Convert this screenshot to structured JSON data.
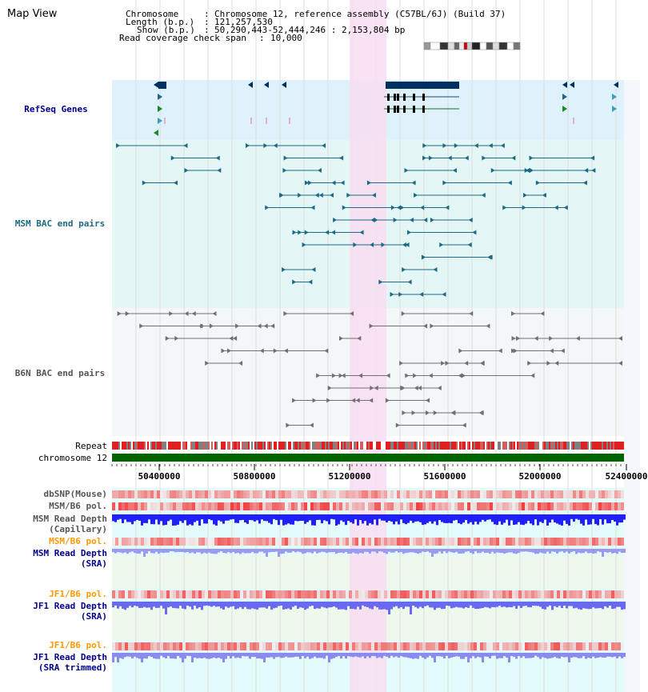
{
  "title": "Map View",
  "header": {
    "chromosome_label": "Chromosome",
    "chromosome_value": "Chromosome 12, reference assembly (C57BL/6J) (Build 37)",
    "length_label": "Length (b.p.)",
    "length_value": "121,257,530",
    "show_label": "Show (b.p.)",
    "show_value": "50,290,443-52,444,246 : 2,153,804 bp",
    "coverage_label": "Read coverage check span",
    "coverage_value": "10,000"
  },
  "tracks": {
    "refseq": "RefSeq Genes",
    "msm_bac": "MSM BAC end pairs",
    "b6n_bac": "B6N BAC end pairs",
    "repeat": "Repeat",
    "chromosome": "chromosome 12",
    "dbsnp": "dbSNP(Mouse)",
    "msm_b6_pol_1": "MSM/B6 pol.",
    "msm_read_cap_1": "MSM Read Depth",
    "msm_read_cap_2": "(Capillary)",
    "msm_b6_pol_2": "MSM/B6 pol.",
    "msm_read_sra_1": "MSM Read Depth",
    "msm_read_sra_2": "(SRA)",
    "jf1_b6_pol_1": "JF1/B6 pol.",
    "jf1_read_sra_1": "JF1 Read Depth",
    "jf1_read_sra_2": "(SRA)",
    "jf1_b6_pol_2": "JF1/B6 pol.",
    "jf1_trim_1": "JF1 Read Depth",
    "jf1_trim_2": "(SRA trimmed)"
  },
  "axis_ticks": [
    "50400000",
    "50800000",
    "51200000",
    "51600000",
    "52000000",
    "52400000"
  ],
  "colors": {
    "refseq_bg": "#dff1fb",
    "msm_bg": "#e4f7f6",
    "b6n_bg": "#f4f7f8",
    "highlight": "#f8ddf1",
    "gene": "#00305f",
    "msm_feature": "#1c6a84",
    "b6n_feature": "#707070",
    "chromosome_bar": "#006400",
    "label_blue": "#00008b",
    "label_teal": "#1c6a84",
    "label_orange": "#ff9900",
    "label_grey": "#333333"
  }
}
